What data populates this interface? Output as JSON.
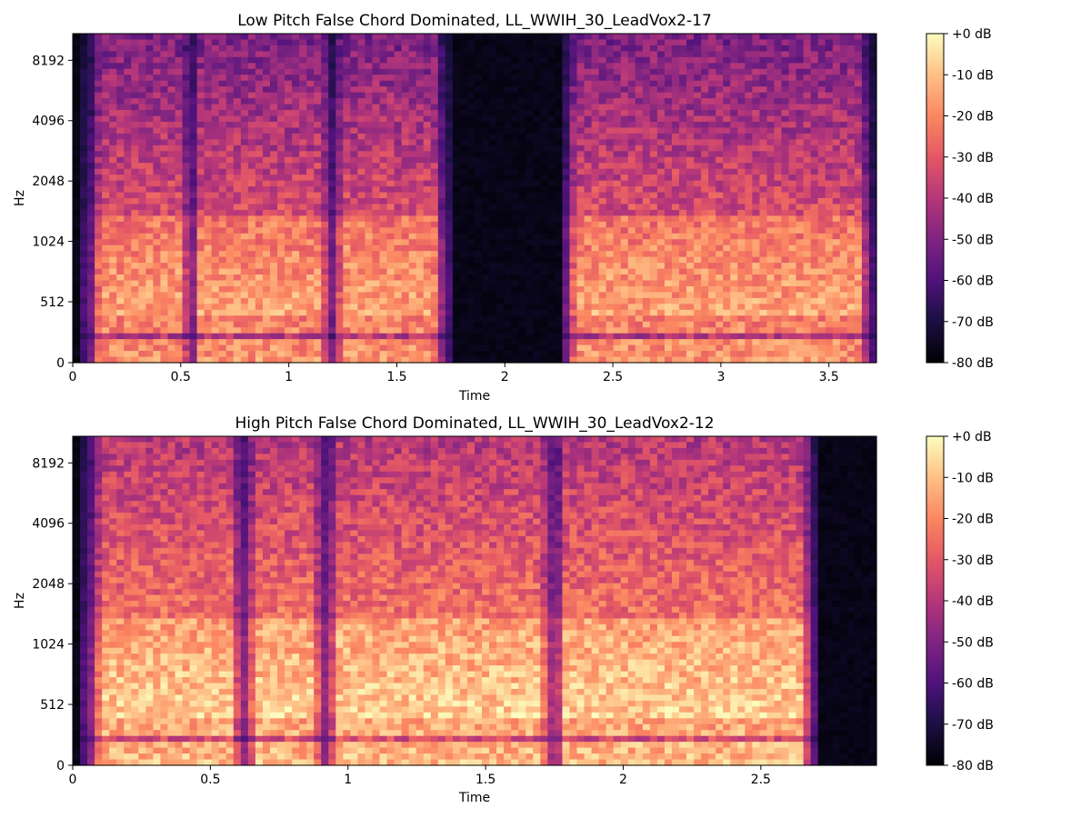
{
  "chart_data": [
    {
      "type": "heatmap",
      "title": "Low Pitch False Chord Dominated, LL_WWIH_30_LeadVox2-17",
      "xlabel": "Time",
      "ylabel": "Hz",
      "x_range": [
        0,
        3.72
      ],
      "x_ticks": [
        0,
        0.5,
        1,
        1.5,
        2,
        2.5,
        3,
        3.5
      ],
      "x_tick_labels": [
        "0",
        "0.5",
        "1",
        "1.5",
        "2",
        "2.5",
        "3",
        "3.5"
      ],
      "y_scale": "log",
      "y_ticks": [
        0,
        512,
        1024,
        2048,
        4096,
        8192
      ],
      "y_tick_labels": [
        "0",
        "512",
        "1024",
        "2048",
        "4096",
        "8192"
      ],
      "colorbar": {
        "range": [
          -80,
          0
        ],
        "ticks": [
          "+0 dB",
          "-10 dB",
          "-20 dB",
          "-30 dB",
          "-40 dB",
          "-50 dB",
          "-60 dB",
          "-70 dB",
          "-80 dB"
        ]
      },
      "colormap": "magma",
      "active_segments": [
        [
          0.05,
          1.75
        ],
        [
          2.25,
          3.72
        ]
      ],
      "dropouts": [
        0.55,
        1.2
      ]
    },
    {
      "type": "heatmap",
      "title": "High Pitch False Chord Dominated, LL_WWIH_30_LeadVox2-12",
      "xlabel": "Time",
      "ylabel": "Hz",
      "x_range": [
        0,
        2.92
      ],
      "x_ticks": [
        0,
        0.5,
        1,
        1.5,
        2,
        2.5
      ],
      "x_tick_labels": [
        "0",
        "0.5",
        "1",
        "1.5",
        "2",
        "2.5"
      ],
      "y_scale": "log",
      "y_ticks": [
        0,
        512,
        1024,
        2048,
        4096,
        8192
      ],
      "y_tick_labels": [
        "0",
        "512",
        "1024",
        "2048",
        "4096",
        "8192"
      ],
      "colorbar": {
        "range": [
          -80,
          0
        ],
        "ticks": [
          "+0 dB",
          "-10 dB",
          "-20 dB",
          "-30 dB",
          "-40 dB",
          "-50 dB",
          "-60 dB",
          "-70 dB",
          "-80 dB"
        ]
      },
      "colormap": "magma",
      "active_segments": [
        [
          0.03,
          2.72
        ]
      ],
      "dropouts": [
        0.62,
        0.92,
        1.75
      ]
    }
  ]
}
